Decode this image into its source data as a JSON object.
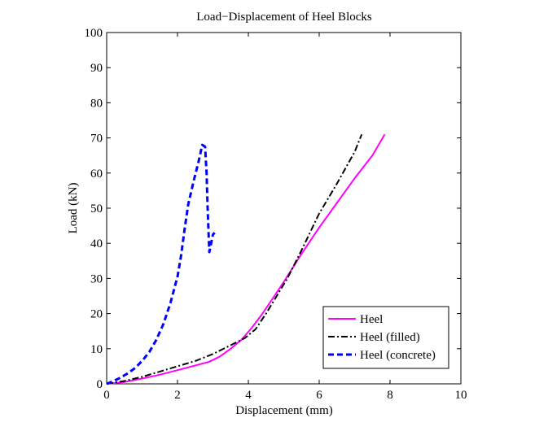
{
  "chart_data": {
    "type": "line",
    "title": "Load−Displacement of Heel Blocks",
    "xlabel": "Displacement (mm)",
    "ylabel": "Load (kN)",
    "xlim": [
      0,
      10
    ],
    "ylim": [
      0,
      100
    ],
    "xticks": [
      "0",
      "2",
      "4",
      "6",
      "8",
      "10"
    ],
    "yticks": [
      "0",
      "10",
      "20",
      "30",
      "40",
      "50",
      "60",
      "70",
      "80",
      "90",
      "100"
    ],
    "grid": false,
    "legend_position": "bottom-right",
    "series": [
      {
        "name": "Heel",
        "color": "#ff00ff",
        "line_style": "solid",
        "x": [
          0,
          0.5,
          1.0,
          1.5,
          2.0,
          2.5,
          2.9,
          3.2,
          3.5,
          3.8,
          4.1,
          4.4,
          4.7,
          5.0,
          5.5,
          6.0,
          6.5,
          7.0,
          7.5,
          7.85
        ],
        "y": [
          0,
          0.5,
          1.5,
          2.6,
          3.9,
          5.2,
          6.3,
          7.8,
          10.0,
          12.5,
          16.0,
          20.0,
          24.5,
          29.0,
          37.0,
          44.5,
          51.5,
          58.5,
          65.0,
          71.0
        ]
      },
      {
        "name": "Heel (filled)",
        "color": "#000000",
        "line_style": "dash-dot",
        "x": [
          0,
          0.5,
          1.0,
          1.5,
          2.0,
          2.5,
          3.0,
          3.5,
          3.9,
          4.2,
          4.5,
          4.8,
          5.1,
          5.5,
          6.0,
          6.5,
          7.0,
          7.2
        ],
        "y": [
          0,
          0.8,
          2.0,
          3.5,
          5.0,
          6.5,
          8.5,
          11.0,
          13.0,
          15.5,
          20.0,
          25.0,
          30.0,
          38.0,
          48.5,
          57.0,
          66.0,
          71.0
        ]
      },
      {
        "name": "Heel (concrete)",
        "color": "#0000ff",
        "line_style": "dashed",
        "x": [
          0,
          0.2,
          0.4,
          0.6,
          0.8,
          1.0,
          1.2,
          1.4,
          1.6,
          1.8,
          2.0,
          2.1,
          2.2,
          2.3,
          2.45,
          2.6,
          2.7,
          2.78,
          2.82,
          2.85,
          2.88,
          2.9,
          2.95,
          3.0,
          3.05
        ],
        "y": [
          0,
          0.8,
          1.8,
          3.0,
          4.5,
          6.5,
          9.0,
          12.5,
          17.0,
          23.0,
          30.5,
          36.5,
          44.0,
          51.0,
          57.5,
          63.5,
          68.0,
          67.5,
          60.0,
          50.0,
          42.0,
          37.5,
          40.0,
          42.5,
          43.0
        ]
      }
    ]
  }
}
